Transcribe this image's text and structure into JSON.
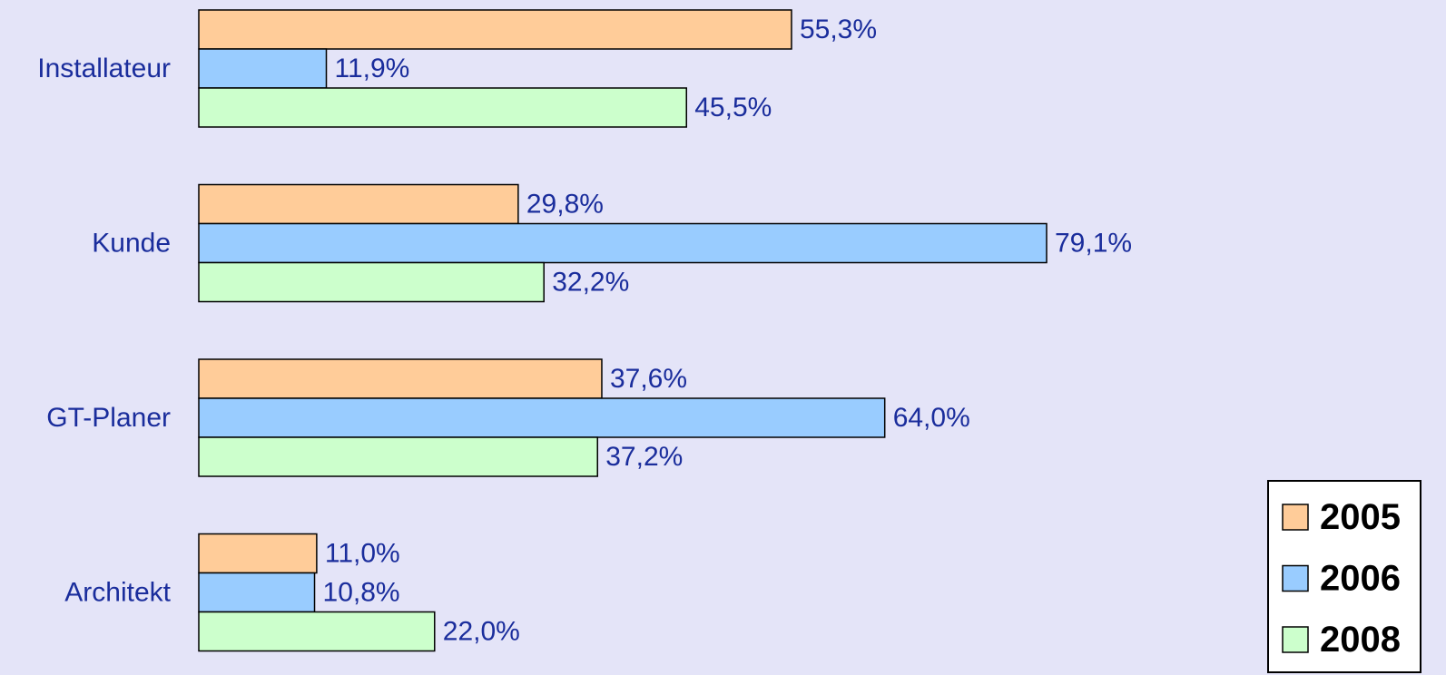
{
  "chart_data": {
    "type": "bar",
    "orientation": "horizontal",
    "categories": [
      "Installateur",
      "Kunde",
      "GT-Planer",
      "Architekt"
    ],
    "series": [
      {
        "name": "2005",
        "color": "#ffcc99",
        "values": [
          55.3,
          29.8,
          37.6,
          11.0
        ],
        "value_labels": [
          "55,3%",
          "29,8%",
          "37,6%",
          "11,0%"
        ]
      },
      {
        "name": "2006",
        "color": "#99ccff",
        "values": [
          11.9,
          79.1,
          64.0,
          10.8
        ],
        "value_labels": [
          "11,9%",
          "79,1%",
          "64,0%",
          "10,8%"
        ]
      },
      {
        "name": "2008",
        "color": "#ccffcc",
        "values": [
          45.5,
          32.2,
          37.2,
          22.0
        ],
        "value_labels": [
          "45,5%",
          "32,2%",
          "37,2%",
          "22,0%"
        ]
      }
    ],
    "legend": "bottom-right"
  }
}
